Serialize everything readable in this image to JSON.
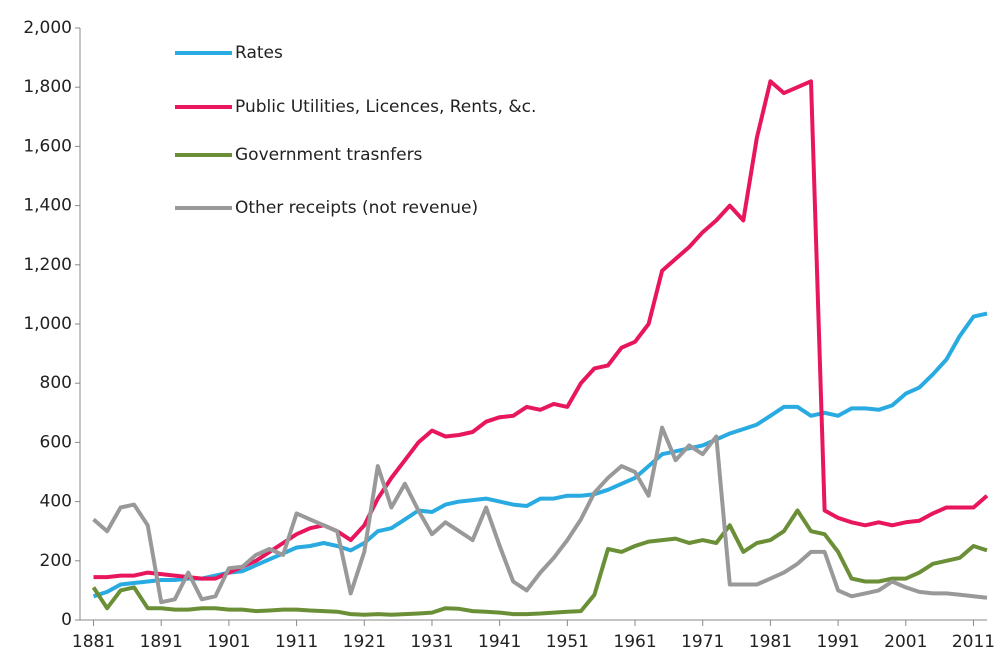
{
  "chart_data": {
    "type": "line",
    "x": [
      1881,
      1883,
      1885,
      1887,
      1889,
      1891,
      1893,
      1895,
      1897,
      1899,
      1901,
      1903,
      1905,
      1907,
      1909,
      1911,
      1913,
      1915,
      1917,
      1919,
      1921,
      1923,
      1925,
      1927,
      1929,
      1931,
      1933,
      1935,
      1937,
      1939,
      1941,
      1943,
      1945,
      1947,
      1949,
      1951,
      1953,
      1955,
      1957,
      1959,
      1961,
      1963,
      1965,
      1967,
      1969,
      1971,
      1973,
      1975,
      1977,
      1979,
      1981,
      1983,
      1985,
      1987,
      1989,
      1991,
      1993,
      1995,
      1997,
      1999,
      2001,
      2003,
      2005,
      2007,
      2009,
      2011,
      2013
    ],
    "series": [
      {
        "name": "Rates",
        "color": "#29abe2",
        "values": [
          80,
          95,
          120,
          125,
          130,
          135,
          135,
          140,
          140,
          150,
          160,
          165,
          185,
          205,
          225,
          245,
          250,
          260,
          250,
          235,
          260,
          300,
          310,
          340,
          370,
          365,
          390,
          400,
          405,
          410,
          400,
          390,
          385,
          410,
          410,
          420,
          420,
          425,
          440,
          460,
          480,
          520,
          560,
          570,
          580,
          590,
          610,
          630,
          645,
          660,
          690,
          720,
          720,
          690,
          700,
          690,
          715,
          715,
          710,
          725,
          765,
          785,
          830,
          880,
          960,
          1025,
          1035
        ]
      },
      {
        "name": "Public Utilities, Licences, Rents, &c.",
        "color": "#e8175d",
        "values": [
          145,
          145,
          150,
          150,
          160,
          155,
          150,
          145,
          140,
          140,
          160,
          180,
          200,
          230,
          260,
          290,
          310,
          320,
          300,
          270,
          320,
          410,
          480,
          540,
          600,
          640,
          620,
          625,
          635,
          670,
          685,
          690,
          720,
          710,
          730,
          720,
          800,
          850,
          860,
          920,
          940,
          1000,
          1180,
          1220,
          1260,
          1310,
          1350,
          1400,
          1350,
          1630,
          1820,
          1780,
          1800,
          1820,
          370,
          345,
          330,
          320,
          330,
          320,
          330,
          335,
          360,
          380,
          380,
          380,
          420
        ]
      },
      {
        "name": "Government trasnfers",
        "color": "#6a8f37",
        "values": [
          110,
          40,
          100,
          110,
          40,
          40,
          35,
          35,
          40,
          40,
          35,
          35,
          30,
          32,
          35,
          35,
          32,
          30,
          28,
          20,
          18,
          20,
          18,
          20,
          22,
          25,
          40,
          38,
          30,
          28,
          25,
          20,
          20,
          22,
          25,
          28,
          30,
          85,
          240,
          230,
          250,
          265,
          270,
          275,
          260,
          270,
          260,
          320,
          230,
          260,
          270,
          300,
          370,
          300,
          290,
          230,
          140,
          130,
          130,
          140,
          140,
          160,
          190,
          200,
          210,
          250,
          235
        ]
      },
      {
        "name": "Other receipts (not revenue)",
        "color": "#999999",
        "values": [
          340,
          300,
          380,
          390,
          320,
          60,
          70,
          160,
          70,
          80,
          175,
          180,
          220,
          240,
          220,
          360,
          340,
          320,
          300,
          90,
          230,
          520,
          380,
          460,
          370,
          290,
          330,
          300,
          270,
          380,
          250,
          130,
          100,
          160,
          210,
          270,
          340,
          430,
          480,
          520,
          500,
          420,
          650,
          540,
          590,
          560,
          620,
          120,
          120,
          120,
          140,
          160,
          190,
          230,
          230,
          100,
          80,
          90,
          100,
          130,
          110,
          95,
          90,
          90,
          85,
          80,
          75
        ]
      }
    ],
    "xlim": [
      1879,
      2013
    ],
    "xticks": [
      1881,
      1891,
      1901,
      1911,
      1921,
      1931,
      1941,
      1951,
      1961,
      1971,
      1981,
      1991,
      2001,
      2011
    ],
    "ylim": [
      0,
      2000
    ],
    "yticks": [
      0,
      200,
      400,
      600,
      800,
      {
        "value": 1000,
        "label": "1,000"
      },
      {
        "value": 1200,
        "label": "1,200"
      },
      {
        "value": 1400,
        "label": "1,400"
      },
      {
        "value": 1600,
        "label": "1,600"
      },
      {
        "value": 1800,
        "label": "1,800"
      },
      {
        "value": 2000,
        "label": "2,000"
      }
    ],
    "grid": false,
    "legend": "upper left"
  }
}
